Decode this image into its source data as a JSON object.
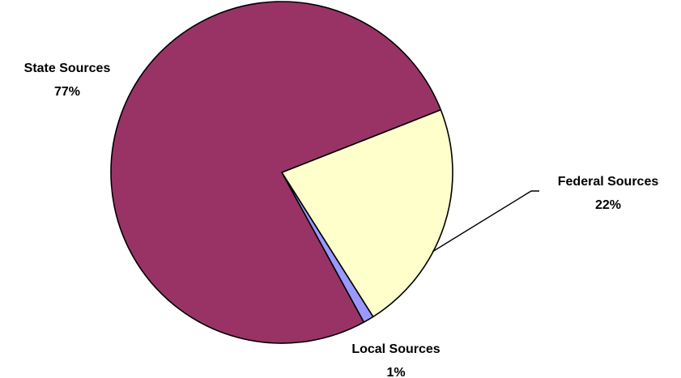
{
  "chart_data": {
    "type": "pie",
    "slices": [
      {
        "label": "State Sources",
        "percent_label": "77%",
        "value": 77,
        "color": "#993366"
      },
      {
        "label": "Federal Sources",
        "percent_label": "22%",
        "value": 22,
        "color": "#ffffcc"
      },
      {
        "label": "Local Sources",
        "percent_label": "1%",
        "value": 1,
        "color": "#9999ff"
      }
    ],
    "legend": "none",
    "data_labels": "category-and-percent"
  }
}
